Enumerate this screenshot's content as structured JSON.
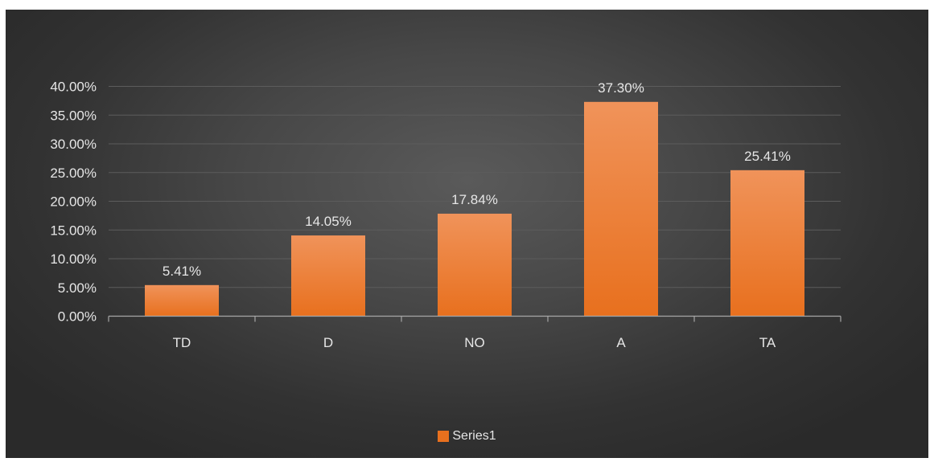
{
  "chart_data": {
    "type": "bar",
    "categories": [
      "TD",
      "D",
      "NO",
      "A",
      "TA"
    ],
    "series": [
      {
        "name": "Series1",
        "values": [
          5.41,
          14.05,
          17.84,
          37.3,
          25.41
        ],
        "data_labels": [
          "5.41%",
          "14.05%",
          "17.84%",
          "37.30%",
          "25.41%"
        ]
      }
    ],
    "y_ticks": [
      "0.00%",
      "5.00%",
      "10.00%",
      "15.00%",
      "20.00%",
      "25.00%",
      "30.00%",
      "35.00%",
      "40.00%"
    ],
    "ylim": [
      0,
      40
    ],
    "y_unit": "%",
    "grid": true,
    "legend_position": "bottom",
    "colors": {
      "bar_top": "#f0935a",
      "bar_bottom": "#e8701e",
      "background": "#3a3a3a",
      "text": "#e6e6e6",
      "grid": "#5c5c5c",
      "axis": "#a6a6a6"
    }
  }
}
